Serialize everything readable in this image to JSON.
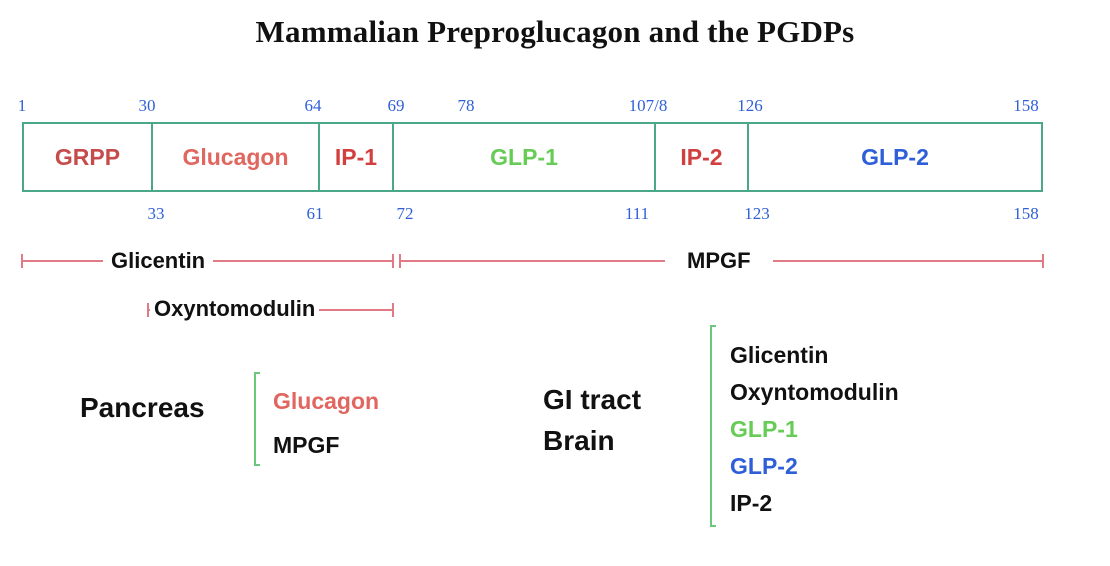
{
  "title": "Mammalian Preproglucagon and the PGDPs",
  "colors": {
    "frame": "#4aa889",
    "position_numbers": "#2f5fd8",
    "fragment_lines": "#e07b86",
    "bracket": "#6cc77a",
    "grpp": "#c64b4b",
    "glucagon": "#e0665f",
    "ip1": "#d23f3f",
    "glp1": "#66cc55",
    "ip2": "#d23f3f",
    "glp2": "#2f5fd8",
    "black": "#111111"
  },
  "top_positions": [
    "1",
    "30",
    "64",
    "69",
    "78",
    "107/8",
    "126",
    "158"
  ],
  "bottom_positions": [
    "33",
    "61",
    "72",
    "111",
    "123",
    "158"
  ],
  "segments": {
    "grpp": "GRPP",
    "glucagon": "Glucagon",
    "ip1": "IP-1",
    "glp1": "GLP-1",
    "ip2": "IP-2",
    "glp2": "GLP-2"
  },
  "fragments": {
    "glicentin": "Glicentin",
    "mpgf": "MPGF",
    "oxyntomodulin": "Oxyntomodulin"
  },
  "pancreas": {
    "tissue": "Pancreas",
    "products": [
      "Glucagon",
      "MPGF"
    ]
  },
  "gi_brain": {
    "tissues": [
      "GI tract",
      "Brain"
    ],
    "products": [
      "Glicentin",
      "Oxyntomodulin",
      "GLP-1",
      "GLP-2",
      "IP-2"
    ]
  }
}
